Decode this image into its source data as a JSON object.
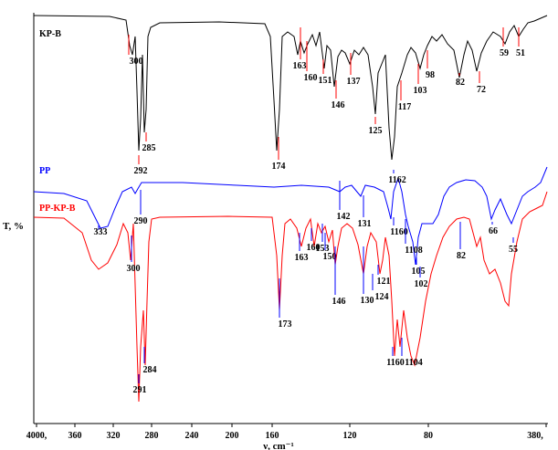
{
  "chart_data": {
    "type": "line",
    "title": "",
    "xlabel": "ν, cm⁻¹",
    "ylabel": "T, %",
    "x_ticks": [
      "4000,",
      "360",
      "320",
      "280",
      "240",
      "200",
      "160",
      "120",
      "80",
      "380,"
    ],
    "colors": {
      "KP-B": "#000000",
      "PP": "#0000ff",
      "PP-KP-B": "#ff0000"
    },
    "series": [
      {
        "name": "KP-B",
        "annotations": [
          {
            "label": "300",
            "x": 300
          },
          {
            "label": "292",
            "x": 292
          },
          {
            "label": "285",
            "x": 285
          },
          {
            "label": "174",
            "x": 174
          },
          {
            "label": "163",
            "x": 163
          },
          {
            "label": "160",
            "x": 160
          },
          {
            "label": "151",
            "x": 151
          },
          {
            "label": "146",
            "x": 146
          },
          {
            "label": "137",
            "x": 137
          },
          {
            "label": "125",
            "x": 125
          },
          {
            "label": "117",
            "x": 117
          },
          {
            "label": "103",
            "x": 103
          },
          {
            "label": "98",
            "x": 98
          },
          {
            "label": "82",
            "x": 82
          },
          {
            "label": "72",
            "x": 72
          },
          {
            "label": "59",
            "x": 59
          },
          {
            "label": "51",
            "x": 51
          }
        ]
      },
      {
        "name": "PP",
        "annotations": [
          {
            "label": "333",
            "x": 333
          },
          {
            "label": "290",
            "x": 290
          },
          {
            "label": "142",
            "x": 142
          },
          {
            "label": "131",
            "x": 131
          },
          {
            "label": "1162",
            "x": 116
          },
          {
            "label": "1160",
            "x": 116
          },
          {
            "label": "1108",
            "x": 110
          },
          {
            "label": "105",
            "x": 105
          },
          {
            "label": "102",
            "x": 102
          },
          {
            "label": "66",
            "x": 66
          },
          {
            "label": "55",
            "x": 55
          }
        ]
      },
      {
        "name": "PP-KP-B",
        "annotations": [
          {
            "label": "300",
            "x": 300
          },
          {
            "label": "291",
            "x": 291
          },
          {
            "label": "284",
            "x": 284
          },
          {
            "label": "173",
            "x": 173
          },
          {
            "label": "163",
            "x": 163
          },
          {
            "label": "160",
            "x": 160
          },
          {
            "label": "153",
            "x": 153
          },
          {
            "label": "150",
            "x": 150
          },
          {
            "label": "146",
            "x": 146
          },
          {
            "label": "130",
            "x": 130
          },
          {
            "label": "121",
            "x": 121
          },
          {
            "label": "124",
            "x": 124
          },
          {
            "label": "1160",
            "x": 116
          },
          {
            "label": "1104",
            "x": 110
          },
          {
            "label": "82",
            "x": 82
          }
        ]
      }
    ]
  }
}
